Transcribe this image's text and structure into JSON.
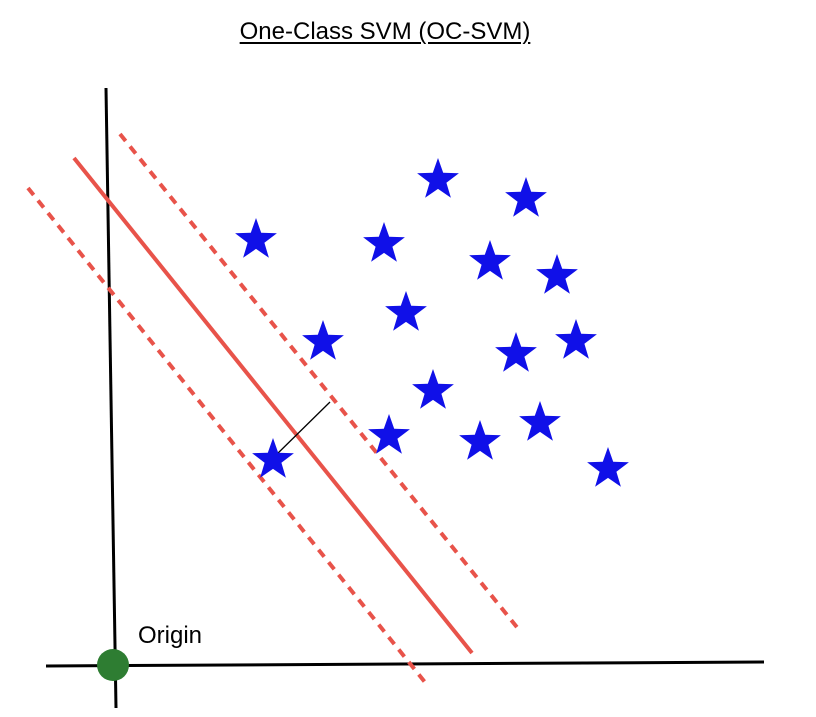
{
  "title": "One-Class SVM (OC-SVM)",
  "origin_label": "Origin",
  "colors": {
    "boundary": "#e8534a",
    "stars": "#1010e8",
    "origin_point": "#2e7d32",
    "axes": "#000000",
    "background": "#ffffff"
  },
  "icons": {
    "data_point": "star-icon",
    "origin": "circle-point"
  }
}
